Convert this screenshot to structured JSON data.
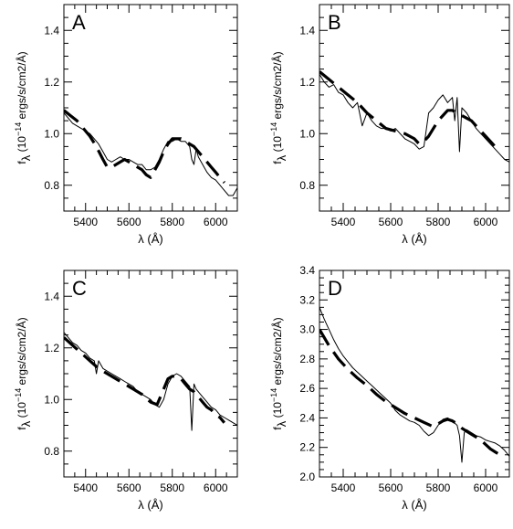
{
  "figure": {
    "ylabel_f": "f",
    "ylabel_sub": "λ",
    "ylabel_rest": " (10",
    "ylabel_exp": "−14",
    "ylabel_units": " ergs/s/cm2/Å)",
    "xlabel": "λ (Å)"
  },
  "chart_data": [
    {
      "type": "line",
      "panel_label": "A",
      "xlabel": "λ (Å)",
      "ylabel": "fλ (10−14 ergs/s/cm2/Å)",
      "xlim": [
        5300,
        6100
      ],
      "ylim": [
        0.7,
        1.5
      ],
      "x_ticks": [
        5400,
        5600,
        5800,
        6000
      ],
      "y_ticks": [
        0.8,
        1.0,
        1.2,
        1.4
      ],
      "y_tick_labels": [
        "0.8",
        "1.0",
        "1.2",
        "1.4"
      ],
      "series": [
        {
          "style": "solid",
          "x": [
            5300,
            5320,
            5340,
            5360,
            5380,
            5400,
            5420,
            5440,
            5460,
            5480,
            5500,
            5520,
            5540,
            5560,
            5580,
            5600,
            5620,
            5640,
            5660,
            5680,
            5700,
            5720,
            5740,
            5760,
            5780,
            5800,
            5820,
            5840,
            5860,
            5880,
            5890,
            5900,
            5910,
            5920,
            5940,
            5960,
            5980,
            6000,
            6020,
            6040,
            6060,
            6080,
            6100
          ],
          "y": [
            1.08,
            1.06,
            1.04,
            1.03,
            1.02,
            1.01,
            1.0,
            0.98,
            0.96,
            0.93,
            0.9,
            0.89,
            0.9,
            0.91,
            0.9,
            0.9,
            0.89,
            0.88,
            0.88,
            0.86,
            0.86,
            0.87,
            0.9,
            0.94,
            0.97,
            0.97,
            0.98,
            0.97,
            0.97,
            0.95,
            0.9,
            0.88,
            0.94,
            0.91,
            0.88,
            0.85,
            0.83,
            0.82,
            0.8,
            0.78,
            0.76,
            0.76,
            0.79
          ]
        },
        {
          "style": "dashed",
          "x": [
            5300,
            5330,
            5360,
            5390,
            5420,
            5450,
            5480,
            5500,
            5520,
            5540,
            5560,
            5580,
            5600,
            5620,
            5640,
            5660,
            5680,
            5700,
            5720,
            5740,
            5760,
            5780,
            5800,
            5820,
            5840,
            5860,
            5880,
            5900,
            5920,
            5940,
            5960,
            5980,
            6000,
            6020,
            6040
          ],
          "y": [
            1.09,
            1.07,
            1.05,
            1.02,
            0.99,
            0.95,
            0.9,
            0.87,
            0.87,
            0.88,
            0.89,
            0.9,
            0.89,
            0.88,
            0.87,
            0.86,
            0.84,
            0.83,
            0.86,
            0.89,
            0.93,
            0.96,
            0.98,
            0.98,
            0.98,
            0.97,
            0.96,
            0.95,
            0.93,
            0.91,
            0.89,
            0.87,
            0.85,
            0.83,
            0.81
          ]
        }
      ]
    },
    {
      "type": "line",
      "panel_label": "B",
      "xlabel": "λ (Å)",
      "ylabel": "fλ (10−14 ergs/s/cm2/Å)",
      "xlim": [
        5300,
        6100
      ],
      "ylim": [
        0.7,
        1.5
      ],
      "x_ticks": [
        5400,
        5600,
        5800,
        6000
      ],
      "y_ticks": [
        0.8,
        1.0,
        1.2,
        1.4
      ],
      "y_tick_labels": [
        "0.8",
        "1.0",
        "1.2",
        "1.4"
      ],
      "series": [
        {
          "style": "solid",
          "x": [
            5300,
            5320,
            5340,
            5360,
            5380,
            5400,
            5420,
            5440,
            5460,
            5480,
            5500,
            5520,
            5540,
            5560,
            5580,
            5600,
            5620,
            5640,
            5660,
            5680,
            5700,
            5720,
            5740,
            5760,
            5780,
            5800,
            5820,
            5840,
            5860,
            5870,
            5880,
            5890,
            5900,
            5920,
            5940,
            5960,
            5980,
            6000,
            6020,
            6040,
            6060,
            6080,
            6100
          ],
          "y": [
            1.23,
            1.2,
            1.18,
            1.19,
            1.16,
            1.15,
            1.12,
            1.1,
            1.12,
            1.03,
            1.08,
            1.05,
            1.03,
            1.02,
            1.02,
            1.01,
            1.02,
            1.0,
            0.98,
            0.97,
            0.96,
            0.94,
            0.95,
            1.08,
            1.1,
            1.13,
            1.15,
            1.12,
            1.14,
            1.05,
            1.14,
            0.93,
            1.1,
            1.08,
            1.05,
            1.02,
            1.0,
            0.98,
            0.96,
            0.94,
            0.92,
            0.9,
            0.89
          ]
        },
        {
          "style": "dashed",
          "x": [
            5300,
            5340,
            5380,
            5420,
            5460,
            5500,
            5540,
            5580,
            5620,
            5660,
            5700,
            5720,
            5740,
            5760,
            5780,
            5800,
            5820,
            5840,
            5860,
            5880,
            5900,
            5920,
            5940,
            5960,
            5980,
            6000,
            6020,
            6040,
            6060
          ],
          "y": [
            1.24,
            1.21,
            1.18,
            1.15,
            1.12,
            1.08,
            1.05,
            1.02,
            1.01,
            1.0,
            0.98,
            0.96,
            0.97,
            0.99,
            1.02,
            1.05,
            1.07,
            1.09,
            1.09,
            1.08,
            1.07,
            1.06,
            1.05,
            1.03,
            1.01,
            0.99,
            0.97,
            0.95,
            0.93
          ]
        }
      ]
    },
    {
      "type": "line",
      "panel_label": "C",
      "xlabel": "λ (Å)",
      "ylabel": "fλ (10−14 ergs/s/cm2/Å)",
      "xlim": [
        5300,
        6100
      ],
      "ylim": [
        0.7,
        1.5
      ],
      "x_ticks": [
        5400,
        5600,
        5800,
        6000
      ],
      "y_ticks": [
        0.8,
        1.0,
        1.2,
        1.4
      ],
      "y_tick_labels": [
        "0.8",
        "1.0",
        "1.2",
        "1.4"
      ],
      "series": [
        {
          "style": "solid",
          "x": [
            5300,
            5320,
            5340,
            5360,
            5380,
            5400,
            5420,
            5440,
            5450,
            5460,
            5480,
            5500,
            5520,
            5540,
            5560,
            5580,
            5600,
            5620,
            5640,
            5660,
            5680,
            5700,
            5720,
            5740,
            5760,
            5780,
            5800,
            5820,
            5840,
            5860,
            5880,
            5890,
            5900,
            5910,
            5920,
            5940,
            5960,
            5980,
            6000,
            6020,
            6040,
            6060,
            6080,
            6100
          ],
          "y": [
            1.26,
            1.24,
            1.22,
            1.21,
            1.19,
            1.18,
            1.16,
            1.15,
            1.1,
            1.15,
            1.12,
            1.11,
            1.1,
            1.09,
            1.08,
            1.07,
            1.06,
            1.05,
            1.03,
            1.02,
            1.01,
            1.0,
            0.98,
            0.97,
            1.0,
            1.06,
            1.09,
            1.1,
            1.09,
            1.07,
            1.05,
            0.88,
            1.06,
            1.04,
            1.03,
            1.01,
            0.99,
            0.97,
            0.96,
            0.94,
            0.93,
            0.92,
            0.91,
            0.9
          ]
        },
        {
          "style": "dashed",
          "x": [
            5300,
            5340,
            5380,
            5420,
            5460,
            5500,
            5540,
            5580,
            5620,
            5660,
            5700,
            5730,
            5760,
            5780,
            5800,
            5820,
            5840,
            5860,
            5880,
            5900,
            5920,
            5940,
            5960,
            5980,
            6000,
            6020,
            6040
          ],
          "y": [
            1.24,
            1.21,
            1.18,
            1.15,
            1.12,
            1.1,
            1.08,
            1.06,
            1.04,
            1.02,
            0.99,
            0.98,
            1.04,
            1.08,
            1.09,
            1.09,
            1.08,
            1.06,
            1.04,
            1.03,
            1.01,
            0.99,
            0.97,
            0.96,
            0.94,
            0.93,
            0.91
          ]
        }
      ]
    },
    {
      "type": "line",
      "panel_label": "D",
      "xlabel": "λ (Å)",
      "ylabel": "fλ (10−14 ergs/s/cm2/Å)",
      "xlim": [
        5300,
        6100
      ],
      "ylim": [
        2.0,
        3.4
      ],
      "x_ticks": [
        5400,
        5600,
        5800,
        6000
      ],
      "y_ticks": [
        2.0,
        2.2,
        2.4,
        2.6,
        2.8,
        3.0,
        3.2,
        3.4
      ],
      "y_tick_labels": [
        "2.0",
        "2.2",
        "2.4",
        "2.6",
        "2.8",
        "3.0",
        "3.2",
        "3.4"
      ],
      "series": [
        {
          "style": "solid",
          "x": [
            5300,
            5320,
            5340,
            5360,
            5380,
            5400,
            5420,
            5440,
            5460,
            5480,
            5500,
            5520,
            5540,
            5560,
            5580,
            5600,
            5620,
            5640,
            5660,
            5680,
            5700,
            5720,
            5740,
            5760,
            5780,
            5800,
            5820,
            5840,
            5860,
            5880,
            5890,
            5900,
            5910,
            5920,
            5940,
            5960,
            5980,
            6000,
            6020,
            6040,
            6060,
            6080,
            6100
          ],
          "y": [
            3.15,
            3.07,
            3.0,
            2.93,
            2.87,
            2.82,
            2.78,
            2.74,
            2.71,
            2.68,
            2.65,
            2.62,
            2.59,
            2.56,
            2.53,
            2.5,
            2.45,
            2.42,
            2.4,
            2.38,
            2.37,
            2.35,
            2.31,
            2.28,
            2.3,
            2.35,
            2.39,
            2.4,
            2.38,
            2.35,
            2.28,
            2.1,
            2.3,
            2.32,
            2.3,
            2.28,
            2.27,
            2.25,
            2.24,
            2.23,
            2.21,
            2.18,
            2.14
          ]
        },
        {
          "style": "dashed",
          "x": [
            5300,
            5340,
            5380,
            5420,
            5460,
            5500,
            5540,
            5580,
            5620,
            5660,
            5700,
            5740,
            5780,
            5800,
            5820,
            5840,
            5860,
            5880,
            5900,
            5920,
            5940,
            5960,
            5980,
            6000,
            6020,
            6040,
            6060,
            6080
          ],
          "y": [
            3.0,
            2.89,
            2.8,
            2.73,
            2.67,
            2.62,
            2.56,
            2.51,
            2.47,
            2.43,
            2.4,
            2.37,
            2.34,
            2.36,
            2.38,
            2.39,
            2.38,
            2.36,
            2.33,
            2.31,
            2.29,
            2.27,
            2.25,
            2.22,
            2.19,
            2.17,
            2.15,
            2.13
          ]
        }
      ]
    }
  ]
}
